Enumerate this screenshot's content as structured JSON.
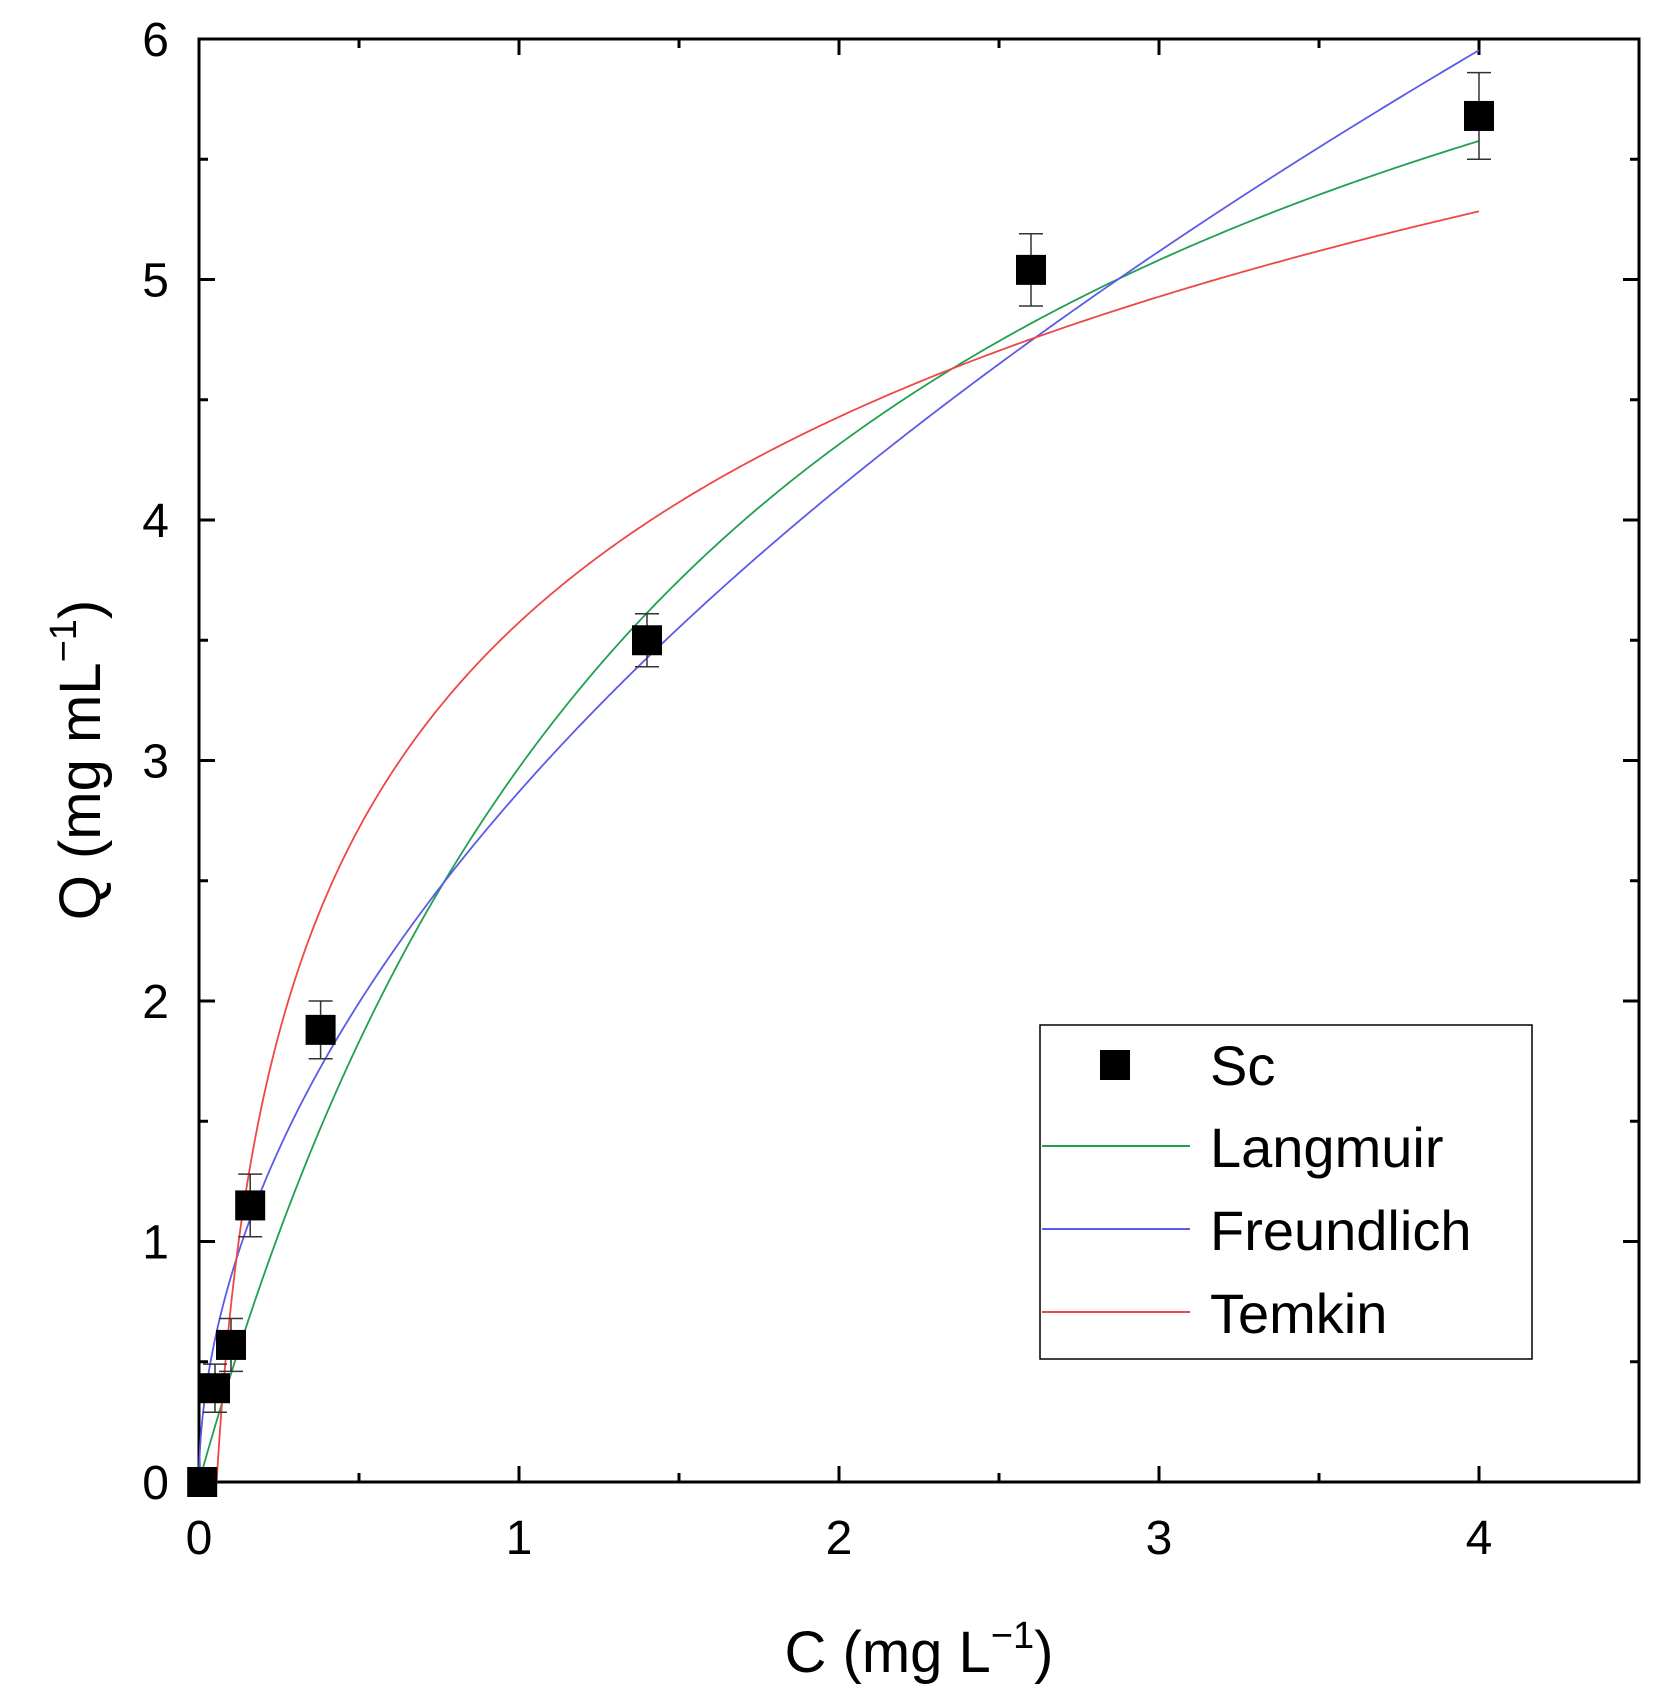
{
  "chart_data": {
    "type": "scatter",
    "xlabel": "C (mg L",
    "xlabel_sup": "−1",
    "xlabel_end": ")",
    "ylabel": "Q (mg mL",
    "ylabel_sup": "−1",
    "ylabel_end": ")",
    "xlim": [
      0,
      4.5
    ],
    "ylim": [
      0,
      6
    ],
    "x_ticks": [
      0,
      1,
      2,
      3,
      4
    ],
    "x_tick_labels": [
      "0",
      "1",
      "2",
      "3",
      "4"
    ],
    "x_minor_ticks": [
      0.5,
      1.5,
      2.5,
      3.5,
      4.5
    ],
    "y_ticks": [
      0,
      1,
      2,
      3,
      4,
      5,
      6
    ],
    "y_tick_labels": [
      "0",
      "1",
      "2",
      "3",
      "4",
      "5",
      "6"
    ],
    "y_minor_ticks": [
      0.5,
      1.5,
      2.5,
      3.5,
      4.5,
      5.5
    ],
    "grid": false,
    "legend_position": "bottom-right",
    "scatter": {
      "name": "Sc",
      "color": "#000000",
      "marker": "square",
      "x": [
        0.01,
        0.05,
        0.1,
        0.16,
        0.38,
        1.4,
        2.6,
        4.0
      ],
      "y": [
        0.0,
        0.39,
        0.57,
        1.15,
        1.88,
        3.5,
        5.04,
        5.68
      ],
      "err": [
        0.0,
        0.1,
        0.11,
        0.13,
        0.12,
        0.11,
        0.15,
        0.18
      ]
    },
    "series": [
      {
        "name": "Langmuir",
        "color": "#21a050",
        "model": "langmuir",
        "params": {
          "qmax": 7.88,
          "k": 0.605
        },
        "x_range": [
          0,
          4.0
        ]
      },
      {
        "name": "Freundlich",
        "color": "#5a5aeb",
        "model": "freundlich",
        "params": {
          "k": 2.87,
          "n": 1.9
        },
        "x_range": [
          0,
          4.0
        ]
      },
      {
        "name": "Temkin",
        "color": "#f04646",
        "model": "temkin",
        "params": {
          "a": 3.574,
          "b": 1.233
        },
        "x_range": [
          0.045,
          4.0
        ]
      }
    ]
  }
}
